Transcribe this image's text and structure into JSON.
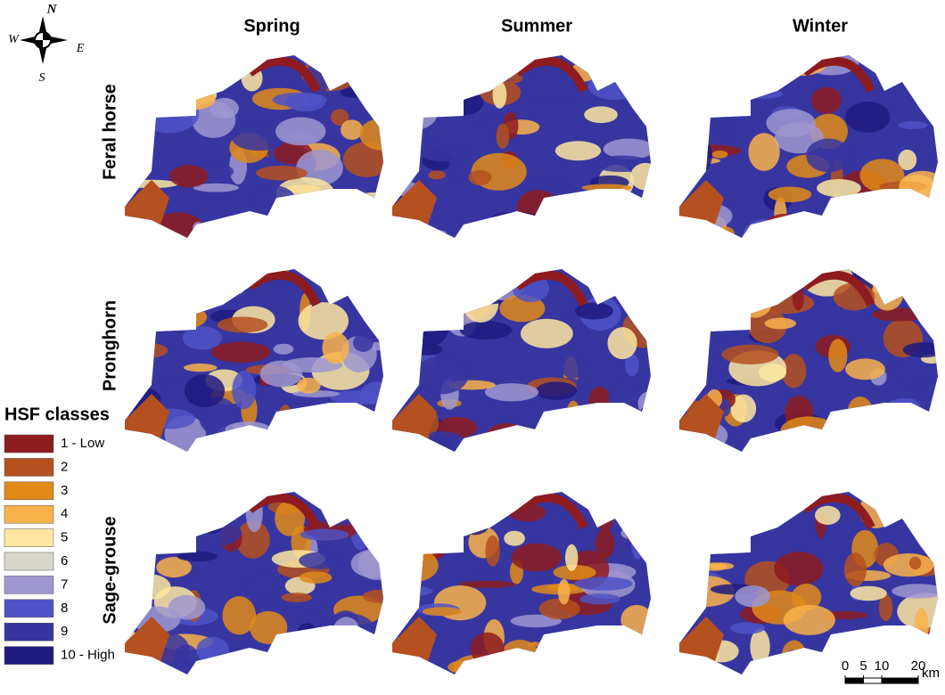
{
  "compass": {
    "north": "N",
    "south": "S",
    "east": "E",
    "west": "W"
  },
  "columns": [
    "Spring",
    "Summer",
    "Winter"
  ],
  "rows": [
    "Feral horse",
    "Pronghorn",
    "Sage-grouse"
  ],
  "legend": {
    "title": "HSF classes",
    "classes": [
      {
        "label": "1 - Low",
        "color": "#8e1b1f"
      },
      {
        "label": "2",
        "color": "#b5501f"
      },
      {
        "label": "3",
        "color": "#e08a17"
      },
      {
        "label": "4",
        "color": "#f9b24a"
      },
      {
        "label": "5",
        "color": "#fde7a1"
      },
      {
        "label": "6",
        "color": "#d9d6cc"
      },
      {
        "label": "7",
        "color": "#9f97d0"
      },
      {
        "label": "8",
        "color": "#4f52c6"
      },
      {
        "label": "9",
        "color": "#3735a0"
      },
      {
        "label": "10 - High",
        "color": "#1f1a7e"
      }
    ]
  },
  "scale_bar": {
    "ticks": [
      0,
      5,
      10,
      20
    ],
    "unit": "km"
  }
}
